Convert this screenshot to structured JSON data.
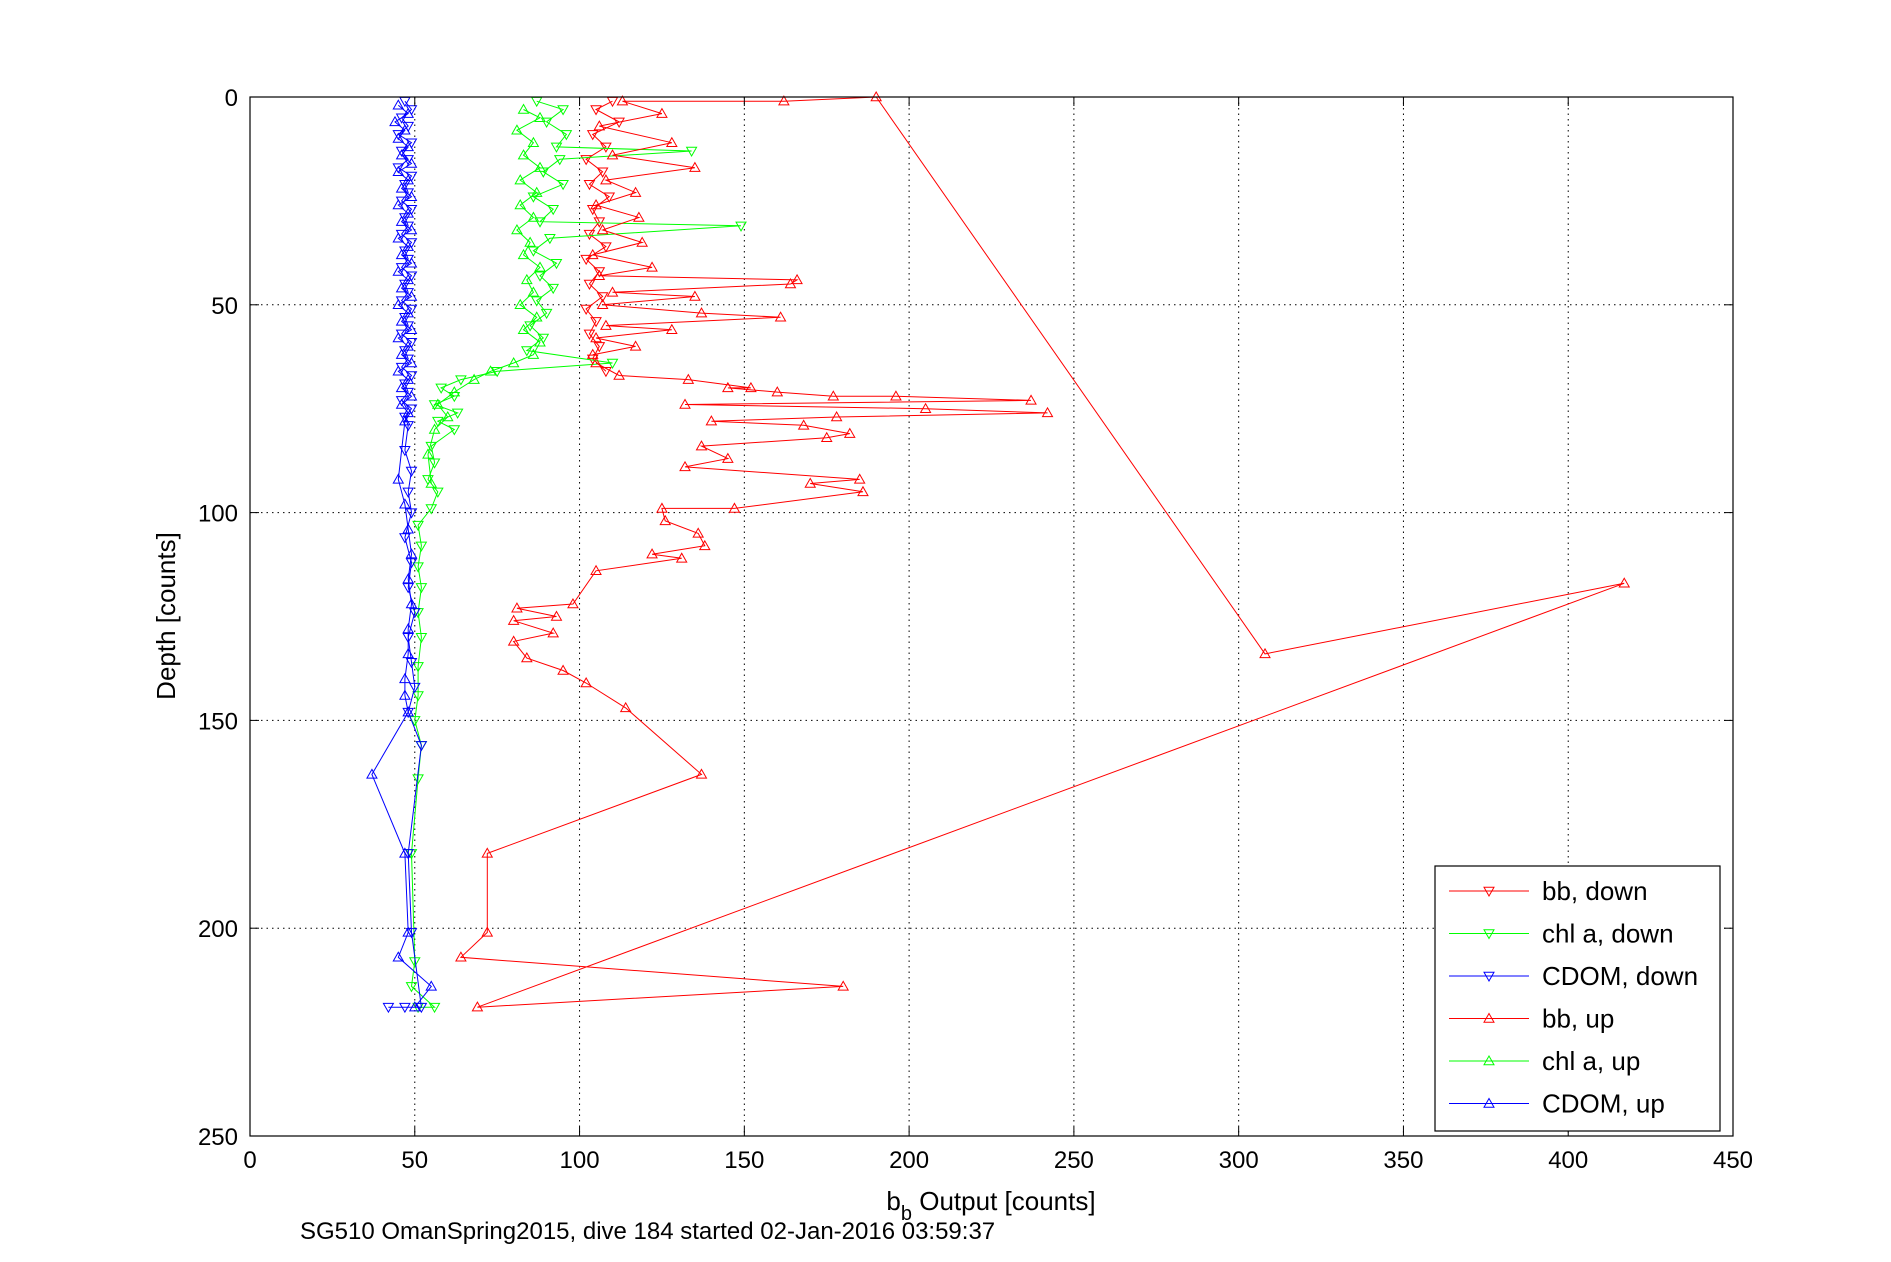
{
  "caption": "SG510 OmanSpring2015, dive 184 started 02-Jan-2016 03:59:37",
  "chart_data": {
    "type": "scatter",
    "title": "",
    "xlabel_main": "b",
    "xlabel_sub": "b",
    "xlabel_rest": " Output [counts]",
    "ylabel": "Depth [counts]",
    "xlim": [
      0,
      450
    ],
    "ylim": [
      0,
      250
    ],
    "y_reversed": true,
    "xticks": [
      0,
      50,
      100,
      150,
      200,
      250,
      300,
      350,
      400,
      450
    ],
    "yticks": [
      0,
      50,
      100,
      150,
      200,
      250
    ],
    "grid": true,
    "legend_position": "bottom-right",
    "series": [
      {
        "name": "bb, down",
        "color": "#ff0000",
        "marker": "triangle-down",
        "connected": true,
        "points": [
          [
            110,
            1
          ],
          [
            105,
            3
          ],
          [
            112,
            6
          ],
          [
            104,
            9
          ],
          [
            108,
            12
          ],
          [
            102,
            15
          ],
          [
            107,
            18
          ],
          [
            103,
            21
          ],
          [
            109,
            24
          ],
          [
            104,
            27
          ],
          [
            106,
            30
          ],
          [
            103,
            33
          ],
          [
            108,
            36
          ],
          [
            102,
            39
          ],
          [
            106,
            42
          ],
          [
            103,
            45
          ],
          [
            107,
            48
          ],
          [
            102,
            51
          ],
          [
            105,
            54
          ],
          [
            103,
            57
          ],
          [
            106,
            60
          ],
          [
            104,
            63
          ],
          [
            108,
            66
          ]
        ]
      },
      {
        "name": "chl a, down",
        "color": "#00ff00",
        "marker": "triangle-down",
        "connected": true,
        "points": [
          [
            87,
            1
          ],
          [
            95,
            3
          ],
          [
            90,
            6
          ],
          [
            96,
            9
          ],
          [
            93,
            12
          ],
          [
            134,
            13
          ],
          [
            94,
            15
          ],
          [
            89,
            18
          ],
          [
            95,
            21
          ],
          [
            86,
            24
          ],
          [
            92,
            27
          ],
          [
            88,
            30
          ],
          [
            149,
            31
          ],
          [
            91,
            34
          ],
          [
            86,
            37
          ],
          [
            93,
            40
          ],
          [
            88,
            43
          ],
          [
            92,
            46
          ],
          [
            87,
            49
          ],
          [
            90,
            52
          ],
          [
            85,
            55
          ],
          [
            89,
            58
          ],
          [
            84,
            61
          ],
          [
            110,
            64
          ],
          [
            75,
            66
          ],
          [
            64,
            68
          ],
          [
            58,
            70
          ],
          [
            62,
            72
          ],
          [
            56,
            74
          ],
          [
            63,
            76
          ],
          [
            57,
            78
          ],
          [
            62,
            80
          ],
          [
            55,
            84
          ],
          [
            56,
            88
          ],
          [
            54,
            92
          ],
          [
            57,
            95
          ],
          [
            55,
            99
          ],
          [
            51,
            103
          ],
          [
            52,
            108
          ],
          [
            51,
            113
          ],
          [
            52,
            118
          ],
          [
            51,
            124
          ],
          [
            52,
            130
          ],
          [
            51,
            137
          ],
          [
            51,
            144
          ],
          [
            50,
            150
          ],
          [
            52,
            156
          ],
          [
            51,
            164
          ],
          [
            49,
            182
          ],
          [
            50,
            208
          ],
          [
            49,
            214
          ],
          [
            56,
            219
          ],
          [
            51,
            219
          ]
        ]
      },
      {
        "name": "CDOM, down",
        "color": "#0000ff",
        "marker": "triangle-down",
        "connected": true,
        "points": [
          [
            47,
            1
          ],
          [
            49,
            3
          ],
          [
            46,
            5
          ],
          [
            48,
            7
          ],
          [
            45,
            9
          ],
          [
            49,
            11
          ],
          [
            46,
            13
          ],
          [
            48,
            15
          ],
          [
            45,
            17
          ],
          [
            49,
            19
          ],
          [
            47,
            21
          ],
          [
            48,
            23
          ],
          [
            46,
            25
          ],
          [
            49,
            27
          ],
          [
            47,
            29
          ],
          [
            48,
            31
          ],
          [
            46,
            33
          ],
          [
            49,
            35
          ],
          [
            47,
            37
          ],
          [
            48,
            39
          ],
          [
            46,
            41
          ],
          [
            49,
            43
          ],
          [
            47,
            45
          ],
          [
            48,
            47
          ],
          [
            46,
            49
          ],
          [
            49,
            51
          ],
          [
            47,
            53
          ],
          [
            48,
            55
          ],
          [
            46,
            57
          ],
          [
            49,
            59
          ],
          [
            47,
            61
          ],
          [
            48,
            63
          ],
          [
            46,
            65
          ],
          [
            49,
            67
          ],
          [
            47,
            69
          ],
          [
            48,
            71
          ],
          [
            46,
            73
          ],
          [
            49,
            75
          ],
          [
            47,
            77
          ],
          [
            48,
            79
          ],
          [
            47,
            85
          ],
          [
            49,
            90
          ],
          [
            48,
            95
          ],
          [
            49,
            100
          ],
          [
            47,
            106
          ],
          [
            49,
            112
          ],
          [
            48,
            118
          ],
          [
            50,
            124
          ],
          [
            48,
            130
          ],
          [
            49,
            136
          ],
          [
            50,
            142
          ],
          [
            48,
            148
          ],
          [
            52,
            156
          ],
          [
            48,
            182
          ],
          [
            49,
            201
          ],
          [
            52,
            219
          ],
          [
            47,
            219
          ],
          [
            42,
            219
          ]
        ]
      },
      {
        "name": "bb, up",
        "color": "#ff0000",
        "marker": "triangle-up",
        "connected": true,
        "points": [
          [
            105,
            64
          ],
          [
            112,
            67
          ],
          [
            133,
            68
          ],
          [
            152,
            70
          ],
          [
            145,
            70
          ],
          [
            160,
            71
          ],
          [
            177,
            72
          ],
          [
            196,
            72
          ],
          [
            237,
            73
          ],
          [
            132,
            74
          ],
          [
            205,
            75
          ],
          [
            242,
            76
          ],
          [
            178,
            77
          ],
          [
            140,
            78
          ],
          [
            168,
            79
          ],
          [
            182,
            81
          ],
          [
            175,
            82
          ],
          [
            137,
            84
          ],
          [
            145,
            87
          ],
          [
            132,
            89
          ],
          [
            185,
            92
          ],
          [
            170,
            93
          ],
          [
            186,
            95
          ],
          [
            147,
            99
          ],
          [
            125,
            99
          ],
          [
            126,
            102
          ],
          [
            136,
            105
          ],
          [
            138,
            108
          ],
          [
            122,
            110
          ],
          [
            131,
            111
          ],
          [
            105,
            114
          ],
          [
            98,
            122
          ],
          [
            81,
            123
          ],
          [
            93,
            125
          ],
          [
            80,
            126
          ],
          [
            92,
            129
          ],
          [
            80,
            131
          ],
          [
            84,
            135
          ],
          [
            95,
            138
          ],
          [
            102,
            141
          ],
          [
            114,
            147
          ],
          [
            137,
            163
          ],
          [
            72,
            182
          ],
          [
            72,
            201
          ],
          [
            64,
            207
          ],
          [
            180,
            214
          ],
          [
            69,
            219
          ],
          [
            417,
            117
          ],
          [
            308,
            134
          ],
          [
            190,
            0
          ],
          [
            162,
            1
          ],
          [
            113,
            1
          ],
          [
            125,
            4
          ],
          [
            106,
            7
          ],
          [
            128,
            11
          ],
          [
            110,
            14
          ],
          [
            135,
            17
          ],
          [
            108,
            20
          ],
          [
            117,
            23
          ],
          [
            105,
            26
          ],
          [
            118,
            29
          ],
          [
            107,
            32
          ],
          [
            119,
            35
          ],
          [
            104,
            38
          ],
          [
            122,
            41
          ],
          [
            106,
            43
          ],
          [
            166,
            44
          ],
          [
            164,
            45
          ],
          [
            110,
            47
          ],
          [
            135,
            48
          ],
          [
            107,
            50
          ],
          [
            137,
            52
          ],
          [
            161,
            53
          ],
          [
            108,
            55
          ],
          [
            128,
            56
          ],
          [
            105,
            58
          ],
          [
            117,
            60
          ],
          [
            104,
            62
          ]
        ]
      },
      {
        "name": "chl a, up",
        "color": "#00ff00",
        "marker": "triangle-up",
        "connected": true,
        "points": [
          [
            83,
            3
          ],
          [
            88,
            5
          ],
          [
            81,
            8
          ],
          [
            86,
            11
          ],
          [
            83,
            14
          ],
          [
            88,
            17
          ],
          [
            82,
            20
          ],
          [
            87,
            23
          ],
          [
            82,
            26
          ],
          [
            86,
            29
          ],
          [
            81,
            32
          ],
          [
            85,
            35
          ],
          [
            83,
            38
          ],
          [
            88,
            41
          ],
          [
            84,
            44
          ],
          [
            86,
            47
          ],
          [
            82,
            50
          ],
          [
            87,
            53
          ],
          [
            83,
            56
          ],
          [
            88,
            59
          ],
          [
            86,
            62
          ],
          [
            80,
            64
          ],
          [
            73,
            66
          ],
          [
            68,
            68
          ],
          [
            62,
            71
          ],
          [
            57,
            74
          ],
          [
            60,
            77
          ],
          [
            56,
            80
          ],
          [
            54,
            86
          ],
          [
            55,
            93
          ]
        ]
      },
      {
        "name": "CDOM, up",
        "color": "#0000ff",
        "marker": "triangle-up",
        "connected": true,
        "points": [
          [
            45,
            2
          ],
          [
            48,
            4
          ],
          [
            44,
            6
          ],
          [
            47,
            8
          ],
          [
            45,
            10
          ],
          [
            48,
            12
          ],
          [
            46,
            14
          ],
          [
            49,
            16
          ],
          [
            45,
            18
          ],
          [
            48,
            20
          ],
          [
            46,
            22
          ],
          [
            49,
            24
          ],
          [
            45,
            26
          ],
          [
            48,
            28
          ],
          [
            46,
            30
          ],
          [
            49,
            32
          ],
          [
            45,
            34
          ],
          [
            48,
            36
          ],
          [
            46,
            38
          ],
          [
            49,
            40
          ],
          [
            45,
            42
          ],
          [
            48,
            44
          ],
          [
            46,
            46
          ],
          [
            49,
            48
          ],
          [
            45,
            50
          ],
          [
            48,
            52
          ],
          [
            46,
            54
          ],
          [
            49,
            56
          ],
          [
            45,
            58
          ],
          [
            48,
            60
          ],
          [
            46,
            62
          ],
          [
            49,
            64
          ],
          [
            45,
            66
          ],
          [
            48,
            68
          ],
          [
            46,
            70
          ],
          [
            49,
            72
          ],
          [
            46,
            74
          ],
          [
            48,
            76
          ],
          [
            47,
            78
          ],
          [
            45,
            92
          ],
          [
            47,
            98
          ],
          [
            48,
            104
          ],
          [
            49,
            110
          ],
          [
            48,
            116
          ],
          [
            49,
            122
          ],
          [
            48,
            128
          ],
          [
            48,
            134
          ],
          [
            47,
            140
          ],
          [
            47,
            144
          ],
          [
            48,
            148
          ],
          [
            37,
            163
          ],
          [
            47,
            182
          ],
          [
            48,
            201
          ],
          [
            45,
            207
          ],
          [
            55,
            214
          ],
          [
            50,
            219
          ]
        ]
      }
    ]
  }
}
